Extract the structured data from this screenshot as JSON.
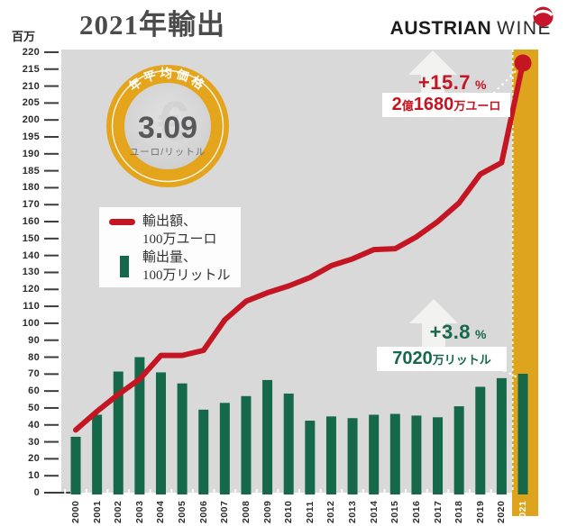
{
  "title": "2021年輸出",
  "y_axis": {
    "unit_label": "百万"
  },
  "logo": {
    "brand_bold": "AUSTRIAN",
    "brand_light": "WINE"
  },
  "badge": {
    "arc_label": "年平均価格",
    "value": "3.09",
    "unit": "ユーロ/リットル",
    "watermark": "€"
  },
  "legend": {
    "value_label_line1": "輸出額、",
    "value_label_line2": "100万ユーロ",
    "volume_label_line1": "輸出量、",
    "volume_label_line2": "100万リットル"
  },
  "annotations": {
    "value": {
      "percent": "+15.7",
      "percent_sign": "%",
      "amount_prefix": "2",
      "amount_unit1": "億",
      "amount_number": "1680",
      "amount_unit2": "万ユーロ"
    },
    "volume": {
      "percent": "+3.8",
      "percent_sign": "%",
      "amount_number": "7020",
      "amount_unit": "万リットル"
    }
  },
  "colors": {
    "line_red": "#c41522",
    "bar_green": "#15684a",
    "gold_band": "#dfa41d",
    "badge_gold": "#e4a51d",
    "plot_bg": "#d9d9d9",
    "axis_text": "#2b2b2b"
  },
  "chart_data": {
    "type": "bar+line",
    "title": "2021年輸出",
    "x": [
      "2000",
      "2001",
      "2002",
      "2003",
      "2004",
      "2005",
      "2006",
      "2007",
      "2008",
      "2009",
      "2010",
      "2011",
      "2012",
      "2013",
      "2014",
      "2015",
      "2016",
      "2017",
      "2018",
      "2019",
      "2020",
      "2021"
    ],
    "highlight_x": "2021",
    "series": [
      {
        "name": "輸出額、100万ユーロ",
        "type": "line",
        "values": [
          37,
          48,
          58,
          67,
          81,
          81,
          84,
          102,
          113,
          118,
          122,
          127,
          134,
          138,
          143.5,
          144,
          151,
          160,
          171,
          184,
          187.4,
          216.8
        ]
      },
      {
        "name": "輸出量、100万リットル",
        "type": "bar",
        "values": [
          33,
          46,
          71.5,
          80,
          71,
          64.5,
          49,
          53,
          57,
          66.5,
          58.5,
          42.5,
          45,
          44,
          46,
          46.5,
          45.5,
          44.5,
          51,
          62.5,
          67.6,
          70.2
        ]
      }
    ],
    "y_ticks": [
      "0",
      "10",
      "20",
      "30",
      "40",
      "50",
      "60",
      "70",
      "80",
      "90",
      "100",
      "110",
      "120",
      "130",
      "140",
      "150",
      "160",
      "170",
      "180",
      "185",
      "190",
      "195",
      "200",
      "205",
      "210",
      "215",
      "220"
    ],
    "y_axis_note": "non-linear scale: 10 units per division from 0 to 180, then 5 units per division from 180 to 220",
    "ylim": [
      0,
      220
    ],
    "grid": false,
    "legend_position": "upper-left",
    "callouts": {
      "value_2021": "2億1680万ユーロ (+15.7 %)",
      "volume_2021": "7020万リットル (+3.8 %)"
    }
  }
}
